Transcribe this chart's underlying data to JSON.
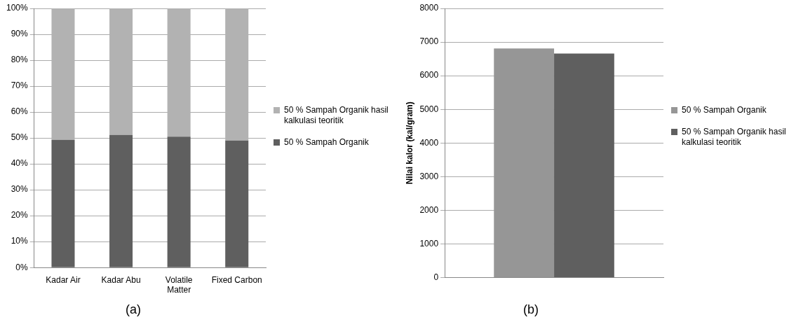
{
  "chart_data": [
    {
      "type": "bar",
      "stacked": true,
      "categories": [
        "Kadar Air",
        "Kadar Abu",
        "Volatile Matter",
        "Fixed Carbon"
      ],
      "series": [
        {
          "name": "50 % Sampah Organik",
          "color": "#5f5f5f",
          "values": [
            49.3,
            51.2,
            50.5,
            49
          ]
        },
        {
          "name": "50 % Sampah Organik hasil kalkulasi teoritik",
          "color": "#b2b2b2",
          "values": [
            50.7,
            48.8,
            49.5,
            51
          ]
        }
      ],
      "ylim": [
        0,
        100
      ],
      "yticks": [
        {
          "value": 0,
          "label": "0%"
        },
        {
          "value": 10,
          "label": "10%"
        },
        {
          "value": 20,
          "label": "20%"
        },
        {
          "value": 30,
          "label": "30%"
        },
        {
          "value": 40,
          "label": "40%"
        },
        {
          "value": 50,
          "label": "50%"
        },
        {
          "value": 60,
          "label": "60%"
        },
        {
          "value": 70,
          "label": "70%"
        },
        {
          "value": 80,
          "label": "80%"
        },
        {
          "value": 90,
          "label": "90%"
        },
        {
          "value": 100,
          "label": "100%"
        }
      ],
      "grid": "y",
      "legend": "right",
      "annotations": [
        "(a)"
      ]
    },
    {
      "type": "bar",
      "categories": [
        null
      ],
      "ylabel": "Nilai kalor (kal/gram)",
      "series": [
        {
          "name": "50 % Sampah Organik",
          "color": "#969696",
          "values": [
            6810
          ]
        },
        {
          "name": "50 % Sampah Organik hasil kalkulasi teoritik",
          "color": "#5f5f5f",
          "values": [
            6660
          ]
        }
      ],
      "ylim": [
        0,
        8000
      ],
      "yticks": [
        0,
        1000,
        2000,
        3000,
        4000,
        5000,
        6000,
        7000,
        8000
      ],
      "grid": "y",
      "legend": "right",
      "annotations": [
        "(b)"
      ]
    }
  ]
}
